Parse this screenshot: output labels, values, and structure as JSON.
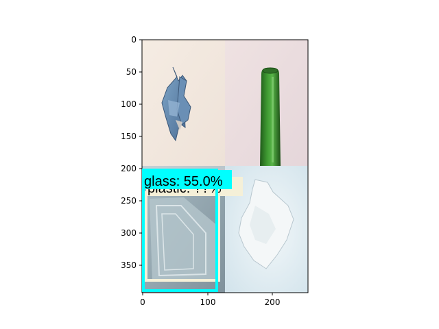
{
  "figure": {
    "x_ticks": [
      "0",
      "100",
      "200"
    ],
    "y_ticks": [
      "0",
      "50",
      "100",
      "150",
      "200",
      "250",
      "300",
      "350"
    ]
  },
  "detections": [
    {
      "label": "plastic: ??%",
      "color": "#f5f0d8",
      "occluded": true
    },
    {
      "label": "glass: 55.0%",
      "color": "#00ffff"
    }
  ],
  "tiles": [
    {
      "name": "crumpled-paper",
      "background": "#f3e8df"
    },
    {
      "name": "green-glass-bottle",
      "background": "#eadcdf"
    },
    {
      "name": "plastic-container",
      "background": "#9fb0b8"
    },
    {
      "name": "plastic-sheet",
      "background": "#dde9ef"
    }
  ]
}
